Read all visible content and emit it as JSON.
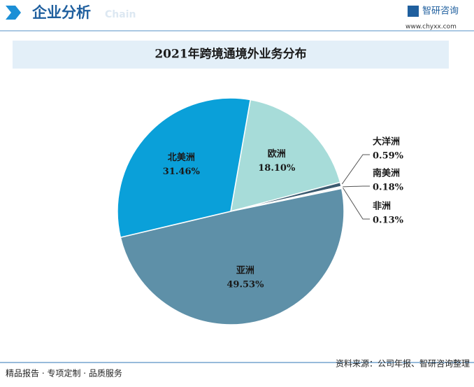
{
  "header": {
    "title": "企业分析",
    "subtitle": "Chain",
    "brand": "智研咨询",
    "url": "www.chyxx.com"
  },
  "chart_data": {
    "type": "pie",
    "title": "2021年跨境通境外业务分布",
    "categories": [
      "欧洲",
      "大洋洲",
      "南美洲",
      "非洲",
      "亚洲",
      "北美洲"
    ],
    "values": [
      18.1,
      0.59,
      0.18,
      0.13,
      49.53,
      31.46
    ],
    "value_labels": [
      "18.10%",
      "0.59%",
      "0.18%",
      "0.13%",
      "49.53%",
      "31.46%"
    ],
    "colors": [
      "#a7dcd9",
      "#3b5b70",
      "#cfe6ee",
      "#7fa7bd",
      "#5e90a8",
      "#0aa0d9"
    ]
  },
  "footer": {
    "left": "精品报告 · 专项定制 · 品质服务",
    "source": "资料来源：公司年报、智研咨询整理"
  }
}
